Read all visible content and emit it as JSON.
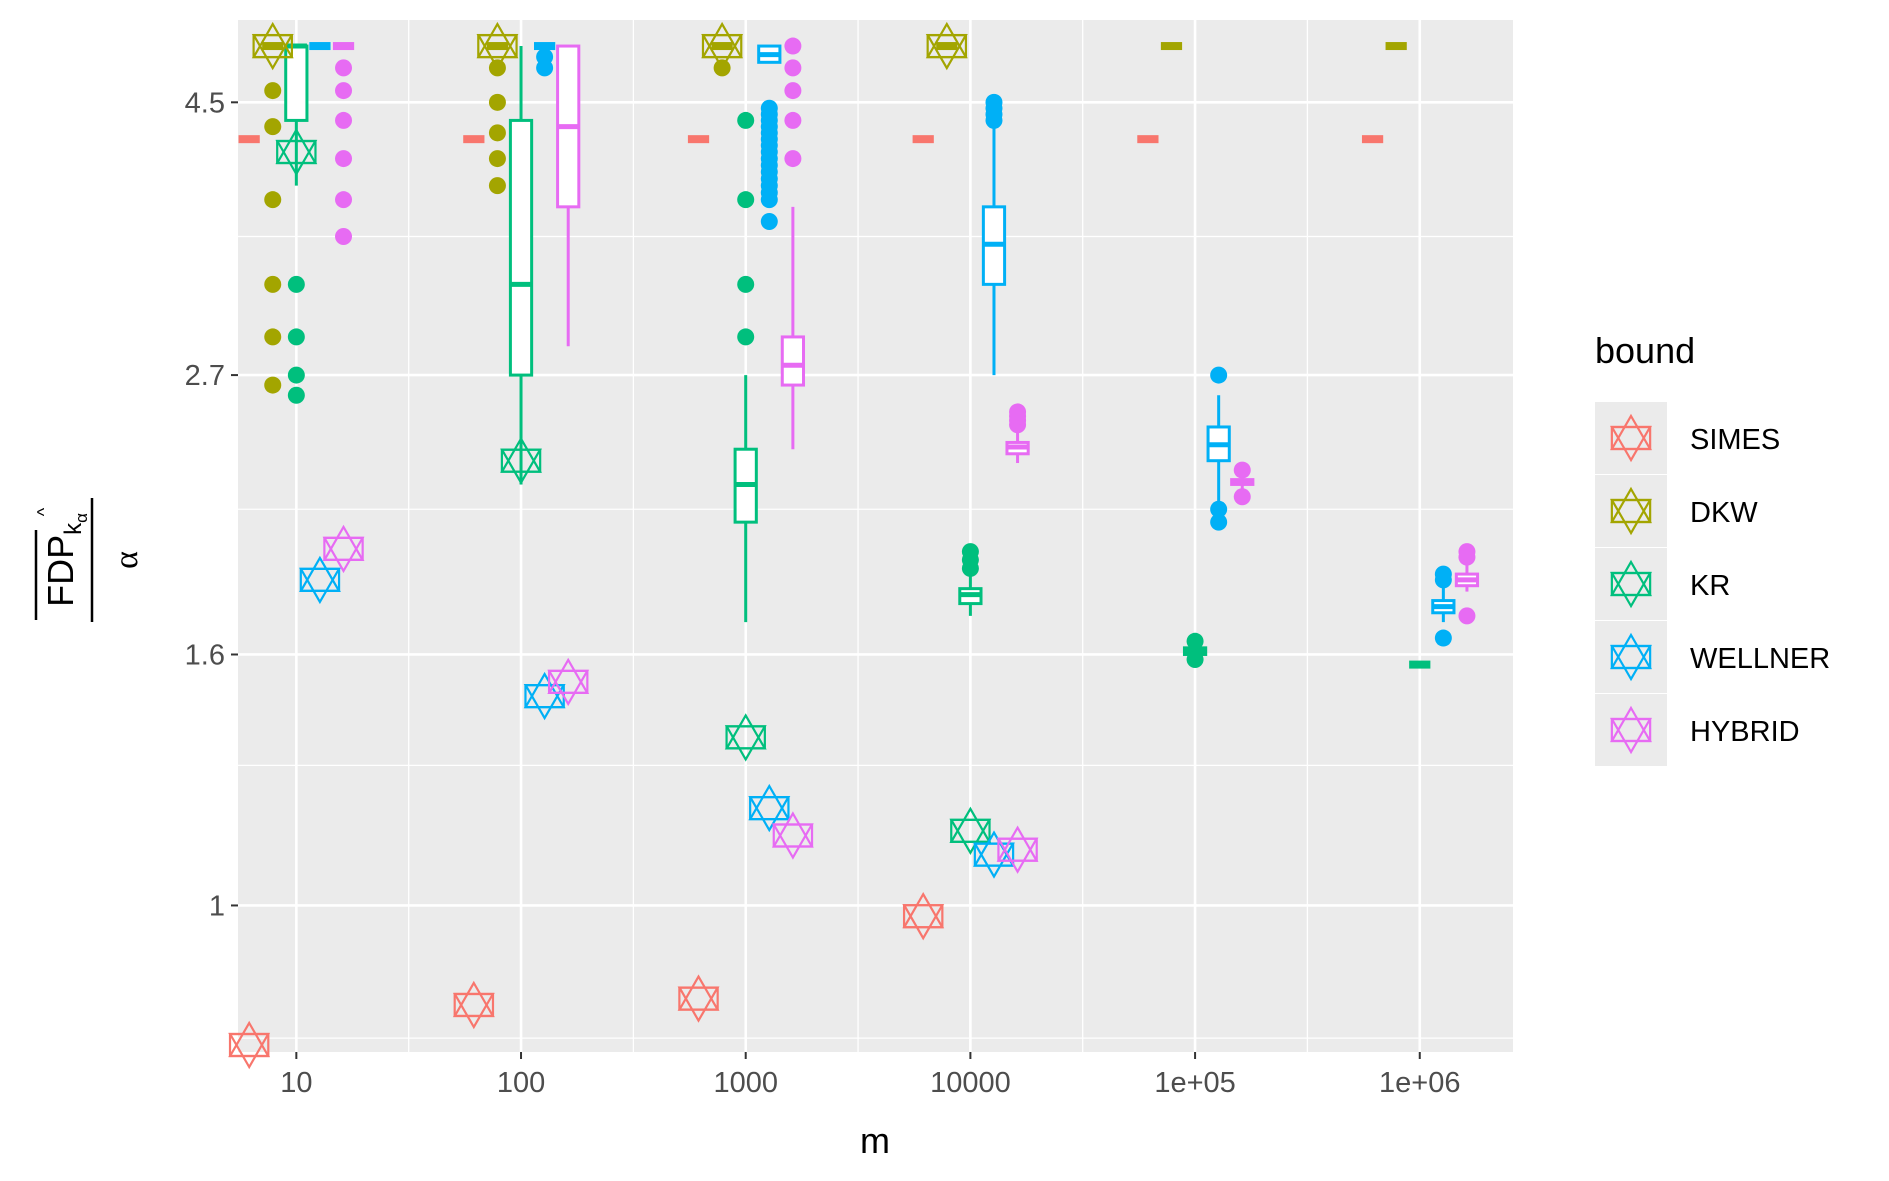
{
  "chart_data": {
    "type": "boxplot+scatter",
    "title": "",
    "xlabel": "m",
    "ylabel_main": "FDP",
    "ylabel_sub": "k",
    "ylabel_subsub": "α",
    "ylabel_hat": "^",
    "ylabel_denominator": "α",
    "x_scale": "log10",
    "y_scale": "log",
    "xlim": [
      5.5,
      2600000
    ],
    "ylim": [
      0.76,
      5.25
    ],
    "x_ticks": [
      10,
      100,
      1000,
      10000,
      100000,
      1000000
    ],
    "x_tick_labels": [
      "10",
      "100",
      "1000",
      "10000",
      "1e+05",
      "1e+06"
    ],
    "y_ticks": [
      1,
      1.6,
      2.7,
      4.5
    ],
    "y_tick_labels": [
      "1",
      "1.6",
      "2.7",
      "4.5"
    ],
    "y_minor_ticks": [
      0.78,
      1.3,
      2.1,
      3.5
    ],
    "legend": {
      "title": "bound",
      "entries": [
        {
          "name": "SIMES",
          "color": "#F8766D"
        },
        {
          "name": "DKW",
          "color": "#A3A500"
        },
        {
          "name": "KR",
          "color": "#00BF7D"
        },
        {
          "name": "WELLNER",
          "color": "#00B0F6"
        },
        {
          "name": "HYBRID",
          "color": "#E76BF3"
        }
      ]
    },
    "star_markers": [
      {
        "bound": "SIMES",
        "m": 10,
        "value": 0.77
      },
      {
        "bound": "SIMES",
        "m": 100,
        "value": 0.83
      },
      {
        "bound": "SIMES",
        "m": 1000,
        "value": 0.84
      },
      {
        "bound": "SIMES",
        "m": 10000,
        "value": 0.98
      },
      {
        "bound": "DKW",
        "m": 10,
        "value": 5.0
      },
      {
        "bound": "DKW",
        "m": 100,
        "value": 5.0
      },
      {
        "bound": "DKW",
        "m": 1000,
        "value": 5.0
      },
      {
        "bound": "DKW",
        "m": 10000,
        "value": 5.0
      },
      {
        "bound": "KR",
        "m": 10,
        "value": 4.1
      },
      {
        "bound": "KR",
        "m": 100,
        "value": 2.3
      },
      {
        "bound": "KR",
        "m": 1000,
        "value": 1.37
      },
      {
        "bound": "KR",
        "m": 10000,
        "value": 1.15
      },
      {
        "bound": "WELLNER",
        "m": 10,
        "value": 1.84
      },
      {
        "bound": "WELLNER",
        "m": 100,
        "value": 1.48
      },
      {
        "bound": "WELLNER",
        "m": 1000,
        "value": 1.2
      },
      {
        "bound": "WELLNER",
        "m": 10000,
        "value": 1.1
      },
      {
        "bound": "HYBRID",
        "m": 10,
        "value": 1.95
      },
      {
        "bound": "HYBRID",
        "m": 100,
        "value": 1.52
      },
      {
        "bound": "HYBRID",
        "m": 1000,
        "value": 1.14
      },
      {
        "bound": "HYBRID",
        "m": 10000,
        "value": 1.11
      }
    ],
    "boxplots": [
      {
        "bound": "SIMES",
        "m": 10,
        "min": 4.2,
        "q1": 4.2,
        "median": 4.2,
        "q3": 4.2,
        "max": 4.2,
        "outliers": []
      },
      {
        "bound": "SIMES",
        "m": 100,
        "min": 4.2,
        "q1": 4.2,
        "median": 4.2,
        "q3": 4.2,
        "max": 4.2,
        "outliers": []
      },
      {
        "bound": "SIMES",
        "m": 1000,
        "min": 4.2,
        "q1": 4.2,
        "median": 4.2,
        "q3": 4.2,
        "max": 4.2,
        "outliers": []
      },
      {
        "bound": "SIMES",
        "m": 10000,
        "min": 4.2,
        "q1": 4.2,
        "median": 4.2,
        "q3": 4.2,
        "max": 4.2,
        "outliers": []
      },
      {
        "bound": "SIMES",
        "m": 100000,
        "min": 4.2,
        "q1": 4.2,
        "median": 4.2,
        "q3": 4.2,
        "max": 4.2,
        "outliers": []
      },
      {
        "bound": "SIMES",
        "m": 1000000,
        "min": 4.2,
        "q1": 4.2,
        "median": 4.2,
        "q3": 4.2,
        "max": 4.2,
        "outliers": []
      },
      {
        "bound": "DKW",
        "m": 10,
        "min": 5.0,
        "q1": 5.0,
        "median": 5.0,
        "q3": 5.0,
        "max": 5.0,
        "outliers": [
          4.6,
          4.3,
          3.75,
          3.2,
          2.9,
          2.65
        ]
      },
      {
        "bound": "DKW",
        "m": 100,
        "min": 5.0,
        "q1": 5.0,
        "median": 5.0,
        "q3": 5.0,
        "max": 5.0,
        "outliers": [
          4.8,
          4.5,
          4.25,
          4.05,
          3.85
        ]
      },
      {
        "bound": "DKW",
        "m": 1000,
        "min": 5.0,
        "q1": 5.0,
        "median": 5.0,
        "q3": 5.0,
        "max": 5.0,
        "outliers": [
          4.8
        ]
      },
      {
        "bound": "DKW",
        "m": 10000,
        "min": 5.0,
        "q1": 5.0,
        "median": 5.0,
        "q3": 5.0,
        "max": 5.0,
        "outliers": []
      },
      {
        "bound": "DKW",
        "m": 100000,
        "min": 5.0,
        "q1": 5.0,
        "median": 5.0,
        "q3": 5.0,
        "max": 5.0,
        "outliers": []
      },
      {
        "bound": "DKW",
        "m": 1000000,
        "min": 5.0,
        "q1": 5.0,
        "median": 5.0,
        "q3": 5.0,
        "max": 5.0,
        "outliers": []
      },
      {
        "bound": "KR",
        "m": 10,
        "min": 3.85,
        "q1": 4.35,
        "median": 5.0,
        "q3": 5.0,
        "max": 5.0,
        "outliers": [
          3.2,
          2.9,
          2.7,
          2.6
        ]
      },
      {
        "bound": "KR",
        "m": 100,
        "min": 2.2,
        "q1": 2.7,
        "median": 3.2,
        "q3": 4.35,
        "max": 5.0,
        "outliers": []
      },
      {
        "bound": "KR",
        "m": 1000,
        "min": 1.7,
        "q1": 2.05,
        "median": 2.2,
        "q3": 2.35,
        "max": 2.7,
        "outliers": [
          4.35,
          3.75,
          3.2,
          2.9
        ]
      },
      {
        "bound": "KR",
        "m": 10000,
        "min": 1.72,
        "q1": 1.76,
        "median": 1.79,
        "q3": 1.81,
        "max": 1.86,
        "outliers": [
          1.88,
          1.91,
          1.94
        ]
      },
      {
        "bound": "KR",
        "m": 100000,
        "min": 1.59,
        "q1": 1.6,
        "median": 1.61,
        "q3": 1.62,
        "max": 1.63,
        "outliers": [
          1.585,
          1.64
        ]
      },
      {
        "bound": "KR",
        "m": 1000000,
        "min": 1.565,
        "q1": 1.568,
        "median": 1.57,
        "q3": 1.572,
        "max": 1.575,
        "outliers": []
      },
      {
        "bound": "WELLNER",
        "m": 10,
        "min": 5.0,
        "q1": 5.0,
        "median": 5.0,
        "q3": 5.0,
        "max": 5.0,
        "outliers": []
      },
      {
        "bound": "WELLNER",
        "m": 100,
        "min": 5.0,
        "q1": 5.0,
        "median": 5.0,
        "q3": 5.0,
        "max": 5.0,
        "outliers": [
          4.9,
          4.8
        ]
      },
      {
        "bound": "WELLNER",
        "m": 1000,
        "min": 4.85,
        "q1": 4.85,
        "median": 4.92,
        "q3": 5.0,
        "max": 5.0,
        "outliers": [
          4.45,
          4.4,
          4.35,
          4.3,
          4.25,
          4.2,
          4.15,
          4.1,
          4.05,
          4.0,
          3.95,
          3.9,
          3.85,
          3.8,
          3.75,
          3.6
        ]
      },
      {
        "bound": "WELLNER",
        "m": 10000,
        "min": 2.7,
        "q1": 3.2,
        "median": 3.45,
        "q3": 3.7,
        "max": 4.3,
        "outliers": [
          4.35,
          4.4,
          4.45,
          4.5
        ]
      },
      {
        "bound": "WELLNER",
        "m": 100000,
        "min": 2.1,
        "q1": 2.3,
        "median": 2.37,
        "q3": 2.45,
        "max": 2.6,
        "outliers": [
          2.7,
          2.1,
          2.05
        ]
      },
      {
        "bound": "WELLNER",
        "m": 1000000,
        "min": 1.7,
        "q1": 1.73,
        "median": 1.75,
        "q3": 1.77,
        "max": 1.82,
        "outliers": [
          1.65,
          1.84,
          1.86
        ]
      },
      {
        "bound": "HYBRID",
        "m": 10,
        "min": 5.0,
        "q1": 5.0,
        "median": 5.0,
        "q3": 5.0,
        "max": 5.0,
        "outliers": [
          4.8,
          4.6,
          4.35,
          4.05,
          3.75,
          3.5
        ]
      },
      {
        "bound": "HYBRID",
        "m": 100,
        "min": 2.85,
        "q1": 3.7,
        "median": 4.3,
        "q3": 5.0,
        "max": 5.0,
        "outliers": []
      },
      {
        "bound": "HYBRID",
        "m": 1000,
        "min": 2.35,
        "q1": 2.65,
        "median": 2.75,
        "q3": 2.9,
        "max": 3.7,
        "outliers": [
          5.0,
          4.8,
          4.6,
          4.35,
          4.05
        ]
      },
      {
        "bound": "HYBRID",
        "m": 10000,
        "min": 2.29,
        "q1": 2.33,
        "median": 2.36,
        "q3": 2.38,
        "max": 2.44,
        "outliers": [
          2.46,
          2.48,
          2.5,
          2.52
        ]
      },
      {
        "bound": "HYBRID",
        "m": 100000,
        "min": 2.18,
        "q1": 2.2,
        "median": 2.21,
        "q3": 2.22,
        "max": 2.24,
        "outliers": [
          2.15,
          2.26
        ]
      },
      {
        "bound": "HYBRID",
        "m": 1000000,
        "min": 1.8,
        "q1": 1.82,
        "median": 1.84,
        "q3": 1.86,
        "max": 1.9,
        "outliers": [
          1.72,
          1.92,
          1.94
        ]
      }
    ]
  }
}
